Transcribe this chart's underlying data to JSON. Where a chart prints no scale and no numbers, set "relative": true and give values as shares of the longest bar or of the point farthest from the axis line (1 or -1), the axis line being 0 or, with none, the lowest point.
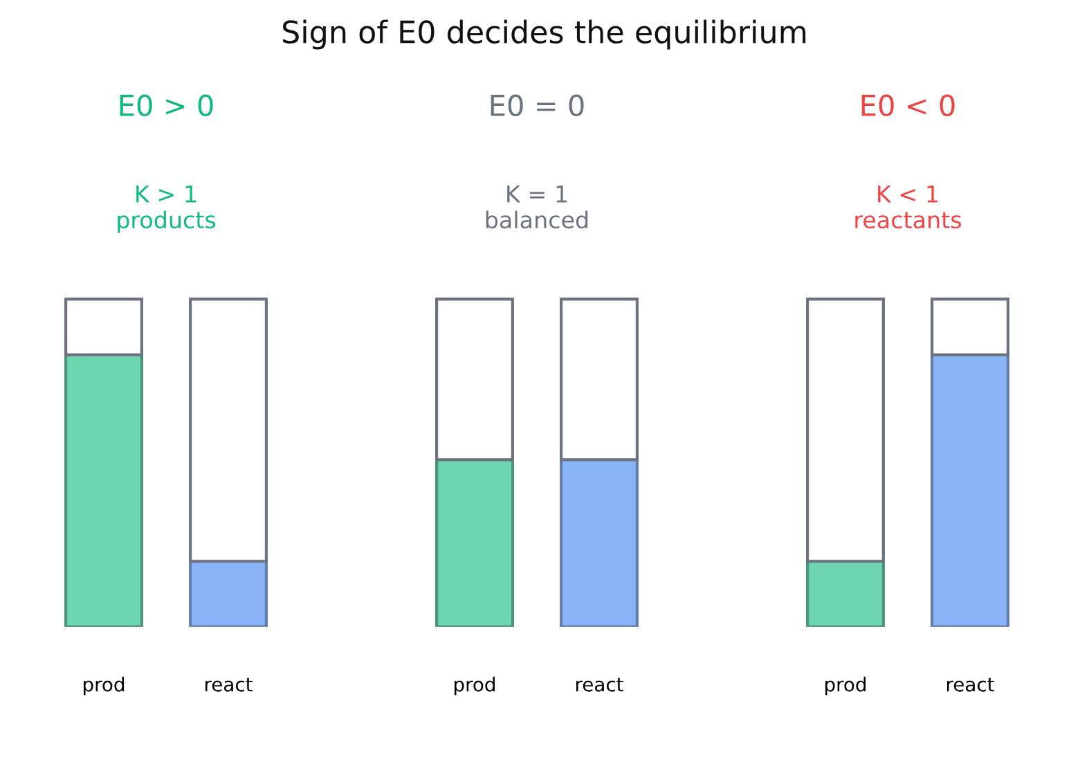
{
  "chart_data": [
    {
      "type": "other",
      "title": "Sign of E0 decides the equilibrium"
    },
    {
      "type": "bar",
      "title": "E0 > 0",
      "subtitle": "K > 1\nproducts",
      "color": "#10b981",
      "categories": [
        "prod",
        "react"
      ],
      "relative": true,
      "stacked": true,
      "series": [
        {
          "colors": [
            "#6dd5b0",
            "#8ab4f8"
          ],
          "values": [
            0.83,
            0.2
          ]
        },
        {
          "colors": [
            "#ffffff",
            "#ffffff"
          ],
          "values": [
            0.17,
            0.8
          ]
        }
      ]
    },
    {
      "type": "bar",
      "title": "E0 = 0",
      "subtitle": "K = 1\nbalanced",
      "color": "#6b7280",
      "categories": [
        "prod",
        "react"
      ],
      "relative": true,
      "stacked": true,
      "series": [
        {
          "colors": [
            "#6dd5b0",
            "#8ab4f8"
          ],
          "values": [
            0.51,
            0.51
          ]
        },
        {
          "colors": [
            "#ffffff",
            "#ffffff"
          ],
          "values": [
            0.49,
            0.49
          ]
        }
      ]
    },
    {
      "type": "bar",
      "title": "E0 < 0",
      "subtitle": "K < 1\nreactants",
      "color": "#ef4444",
      "categories": [
        "prod",
        "react"
      ],
      "relative": true,
      "stacked": true,
      "series": [
        {
          "colors": [
            "#6dd5b0",
            "#8ab4f8"
          ],
          "values": [
            0.2,
            0.83
          ]
        },
        {
          "colors": [
            "#ffffff",
            "#ffffff"
          ],
          "values": [
            0.8,
            0.17
          ]
        }
      ]
    }
  ]
}
